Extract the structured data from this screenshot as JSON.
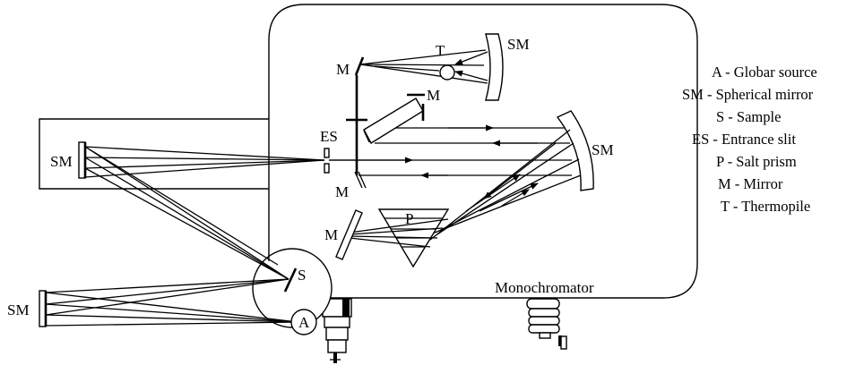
{
  "labels": {
    "thermopile": "T",
    "sm_top": "SM",
    "mirror_top": "M",
    "mirror_upper_mid": "M",
    "entrance_slit": "ES",
    "sm_right": "SM",
    "mirror_lower": "M",
    "sm_left_upper": "SM",
    "prism": "P",
    "mirror_prism": "M",
    "sample": "S",
    "source": "A",
    "sm_left_lower": "SM",
    "monochromator": "Monochromator"
  },
  "legend": [
    "A - Globar source",
    "SM - Spherical mirror",
    "S - Sample",
    "ES - Entrance slit",
    "P - Salt prism",
    "M - Mirror",
    "T - Thermopile"
  ]
}
